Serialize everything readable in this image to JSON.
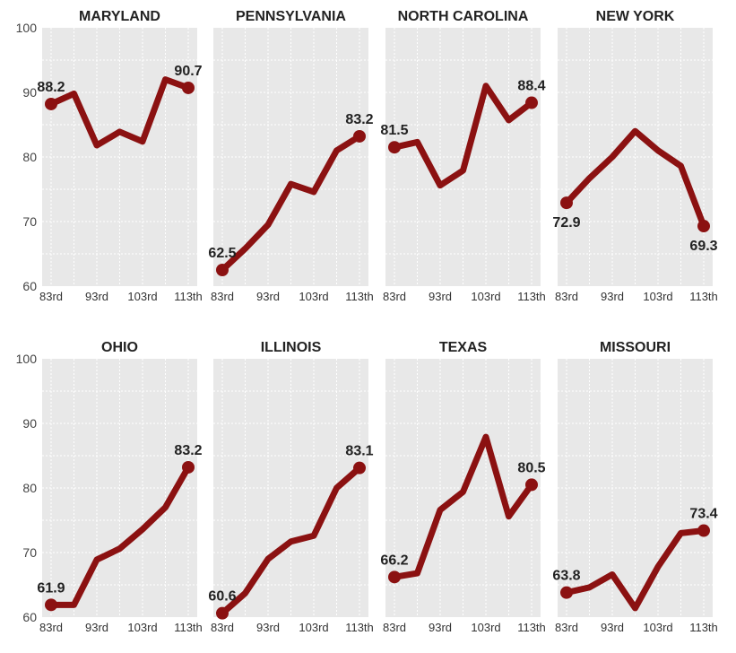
{
  "colors": {
    "panel_background": "#e8e8e8",
    "gridline": "#ffffff",
    "line": "#8b1111"
  },
  "chart_data": [
    {
      "type": "line",
      "title": "MARYLAND",
      "x_tick_labels": [
        "83rd",
        "93rd",
        "103rd",
        "113th"
      ],
      "y_tick_labels": [
        "60",
        "70",
        "80",
        "90",
        "100"
      ],
      "ylim": [
        60,
        100
      ],
      "x": [
        83,
        85,
        88,
        90,
        93,
        95,
        98,
        100,
        103,
        105,
        108,
        110,
        113
      ],
      "values": [
        88.2,
        89.8,
        81.8,
        83.9,
        82.4,
        92.0,
        90.7
      ],
      "x_values": [
        83,
        88,
        93,
        98,
        103,
        108,
        113
      ],
      "labels": [
        {
          "index": 0,
          "text": "88.2",
          "position": "above"
        },
        {
          "index": 6,
          "text": "90.7",
          "position": "above"
        }
      ]
    },
    {
      "type": "line",
      "title": "PENNSYLVANIA",
      "x_tick_labels": [
        "83rd",
        "93rd",
        "103rd",
        "113th"
      ],
      "y_tick_labels": [],
      "ylim": [
        60,
        100
      ],
      "x_values": [
        83,
        88,
        93,
        98,
        103,
        108,
        113
      ],
      "values": [
        62.5,
        65.8,
        69.5,
        75.8,
        74.6,
        81.0,
        83.2
      ],
      "labels": [
        {
          "index": 0,
          "text": "62.5",
          "position": "above"
        },
        {
          "index": 6,
          "text": "83.2",
          "position": "above"
        }
      ]
    },
    {
      "type": "line",
      "title": "NORTH CAROLINA",
      "x_tick_labels": [
        "83rd",
        "93rd",
        "103rd",
        "113th"
      ],
      "y_tick_labels": [],
      "ylim": [
        60,
        100
      ],
      "x_values": [
        83,
        88,
        93,
        98,
        103,
        108,
        113
      ],
      "values": [
        81.5,
        82.3,
        75.6,
        77.9,
        91.0,
        85.7,
        88.4
      ],
      "labels": [
        {
          "index": 0,
          "text": "81.5",
          "position": "above"
        },
        {
          "index": 6,
          "text": "88.4",
          "position": "above"
        }
      ]
    },
    {
      "type": "line",
      "title": "NEW YORK",
      "x_tick_labels": [
        "83rd",
        "93rd",
        "103rd",
        "113th"
      ],
      "y_tick_labels": [],
      "ylim": [
        60,
        100
      ],
      "x_values": [
        83,
        88,
        93,
        98,
        103,
        108,
        113
      ],
      "values": [
        72.9,
        76.7,
        80.0,
        84.0,
        81.0,
        78.6,
        69.3
      ],
      "labels": [
        {
          "index": 0,
          "text": "72.9",
          "position": "below"
        },
        {
          "index": 6,
          "text": "69.3",
          "position": "below"
        }
      ]
    },
    {
      "type": "line",
      "title": "OHIO",
      "x_tick_labels": [
        "83rd",
        "93rd",
        "103rd",
        "113th"
      ],
      "y_tick_labels": [
        "60",
        "70",
        "80",
        "90",
        "100"
      ],
      "ylim": [
        60,
        100
      ],
      "x_values": [
        83,
        88,
        93,
        98,
        103,
        108,
        113
      ],
      "values": [
        61.9,
        61.9,
        68.9,
        70.6,
        73.6,
        77.0,
        83.2
      ],
      "labels": [
        {
          "index": 0,
          "text": "61.9",
          "position": "above"
        },
        {
          "index": 6,
          "text": "83.2",
          "position": "above"
        }
      ]
    },
    {
      "type": "line",
      "title": "ILLINOIS",
      "x_tick_labels": [
        "83rd",
        "93rd",
        "103rd",
        "113th"
      ],
      "y_tick_labels": [],
      "ylim": [
        60,
        100
      ],
      "x_values": [
        83,
        88,
        93,
        98,
        103,
        108,
        113
      ],
      "values": [
        60.6,
        63.7,
        69.0,
        71.7,
        72.6,
        80.0,
        83.1
      ],
      "labels": [
        {
          "index": 0,
          "text": "60.6",
          "position": "above"
        },
        {
          "index": 6,
          "text": "83.1",
          "position": "above"
        }
      ]
    },
    {
      "type": "line",
      "title": "TEXAS",
      "x_tick_labels": [
        "83rd",
        "93rd",
        "103rd",
        "113th"
      ],
      "y_tick_labels": [],
      "ylim": [
        60,
        100
      ],
      "x_values": [
        83,
        88,
        93,
        98,
        103,
        108,
        113
      ],
      "values": [
        66.2,
        66.8,
        76.6,
        79.4,
        87.9,
        75.6,
        80.5
      ],
      "labels": [
        {
          "index": 0,
          "text": "66.2",
          "position": "above"
        },
        {
          "index": 6,
          "text": "80.5",
          "position": "above"
        }
      ]
    },
    {
      "type": "line",
      "title": "MISSOURI",
      "x_tick_labels": [
        "83rd",
        "93rd",
        "103rd",
        "113th"
      ],
      "y_tick_labels": [],
      "ylim": [
        60,
        100
      ],
      "x_values": [
        83,
        88,
        93,
        98,
        103,
        108,
        113
      ],
      "values": [
        63.8,
        64.6,
        66.6,
        61.4,
        67.8,
        73.0,
        73.4
      ],
      "labels": [
        {
          "index": 0,
          "text": "63.8",
          "position": "above"
        },
        {
          "index": 6,
          "text": "73.4",
          "position": "above"
        }
      ]
    }
  ]
}
